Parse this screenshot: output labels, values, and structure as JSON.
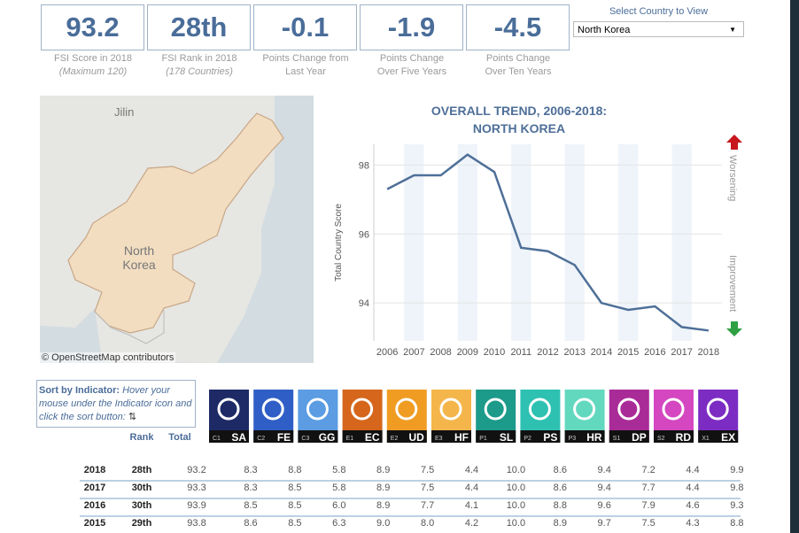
{
  "kpis": [
    {
      "value": "93.2",
      "label": "FSI Score in 2018",
      "note": "(Maximum 120)"
    },
    {
      "value": "28th",
      "label": "FSI Rank in 2018",
      "note": "(178 Countries)"
    },
    {
      "value": "-0.1",
      "label": "Points Change from Last Year"
    },
    {
      "value": "-1.9",
      "label": "Points Change Over Five Years"
    },
    {
      "value": "-4.5",
      "label": "Points Change Over Ten Years"
    }
  ],
  "selector": {
    "label": "Select Country to View",
    "value": "North Korea"
  },
  "map": {
    "labels": [
      "Jilin",
      "North Korea"
    ],
    "attribution": "© OpenStreetMap contributors"
  },
  "chart_data": {
    "type": "line",
    "title": "OVERALL TREND, 2006-2018:",
    "subtitle": "NORTH KOREA",
    "y_label": "Total Country Score",
    "categories": [
      "2006",
      "2007",
      "2008",
      "2009",
      "2010",
      "2011",
      "2012",
      "2013",
      "2014",
      "2015",
      "2016",
      "2017",
      "2018"
    ],
    "values": [
      97.3,
      97.7,
      97.7,
      98.3,
      97.8,
      95.6,
      95.5,
      95.1,
      94.0,
      93.8,
      93.9,
      93.3,
      93.2
    ],
    "color": "#4e6f98",
    "ylim": [
      92.9,
      98.6
    ],
    "yticks": [
      94,
      96,
      98
    ],
    "annotations": [
      "Worsening",
      "Improvement"
    ]
  },
  "sort": {
    "title": "Sort by Indicator:",
    "text": "Hover your mouse under the Indicator icon and click the sort button:"
  },
  "table": {
    "columns": [
      "Rank",
      "Total"
    ],
    "indicators": [
      {
        "code": "C1",
        "abbr": "SA",
        "color": "#1d2a66"
      },
      {
        "code": "C2",
        "abbr": "FE",
        "color": "#2f5fc6"
      },
      {
        "code": "C3",
        "abbr": "GG",
        "color": "#5b9ce2"
      },
      {
        "code": "E1",
        "abbr": "EC",
        "color": "#d5661c"
      },
      {
        "code": "E2",
        "abbr": "UD",
        "color": "#f09c22"
      },
      {
        "code": "E3",
        "abbr": "HF",
        "color": "#f4b64b"
      },
      {
        "code": "P1",
        "abbr": "SL",
        "color": "#1c9a8a"
      },
      {
        "code": "P2",
        "abbr": "PS",
        "color": "#2ec1b2"
      },
      {
        "code": "P3",
        "abbr": "HR",
        "color": "#62d8bf"
      },
      {
        "code": "S1",
        "abbr": "DP",
        "color": "#a92b98"
      },
      {
        "code": "S2",
        "abbr": "RD",
        "color": "#d447c0"
      },
      {
        "code": "X1",
        "abbr": "EX",
        "color": "#7c2cc2"
      }
    ],
    "rows": [
      [
        "2018",
        "28th",
        "93.2",
        "8.3",
        "8.8",
        "5.8",
        "8.9",
        "7.5",
        "4.4",
        "10.0",
        "8.6",
        "9.4",
        "7.2",
        "4.4",
        "9.9"
      ],
      [
        "2017",
        "30th",
        "93.3",
        "8.3",
        "8.5",
        "5.8",
        "8.9",
        "7.5",
        "4.4",
        "10.0",
        "8.6",
        "9.4",
        "7.7",
        "4.4",
        "9.8"
      ],
      [
        "2016",
        "30th",
        "93.9",
        "8.5",
        "8.5",
        "6.0",
        "8.9",
        "7.7",
        "4.1",
        "10.0",
        "8.8",
        "9.6",
        "7.9",
        "4.6",
        "9.3"
      ],
      [
        "2015",
        "29th",
        "93.8",
        "8.6",
        "8.5",
        "6.3",
        "9.0",
        "8.0",
        "4.2",
        "10.0",
        "8.9",
        "9.7",
        "7.5",
        "4.3",
        "8.8"
      ]
    ]
  }
}
